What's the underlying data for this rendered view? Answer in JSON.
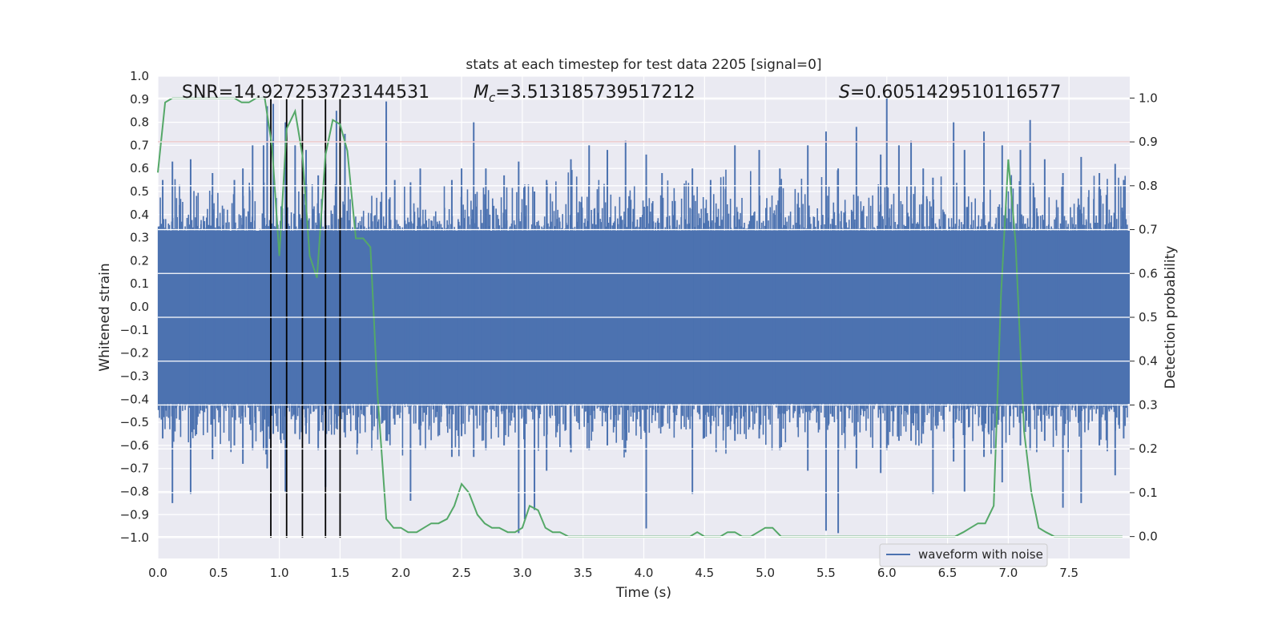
{
  "chart_data": {
    "type": "line",
    "title": "stats at each timestep for test data 2205 [signal=0]",
    "xlabel": "Time (s)",
    "ylabel": "Whitened strain",
    "y2label": "Detection probability",
    "xlim": [
      0.0,
      8.0
    ],
    "ylim": [
      -1.09,
      1.0
    ],
    "y2lim": [
      -0.05,
      1.05
    ],
    "xticks": [
      "0.0",
      "0.5",
      "1.0",
      "1.5",
      "2.0",
      "2.5",
      "3.0",
      "3.5",
      "4.0",
      "4.5",
      "5.0",
      "5.5",
      "6.0",
      "6.5",
      "7.0",
      "7.5"
    ],
    "yticks": [
      "1.0",
      "0.9",
      "0.8",
      "0.7",
      "0.6",
      "0.5",
      "0.4",
      "0.3",
      "0.2",
      "0.1",
      "0.0",
      "−0.1",
      "−0.2",
      "−0.3",
      "−0.4",
      "−0.5",
      "−0.6",
      "−0.7",
      "−0.8",
      "−0.9",
      "−1.0"
    ],
    "y2ticks": [
      "1.0",
      "0.9",
      "0.8",
      "0.7",
      "0.6",
      "0.5",
      "0.4",
      "0.3",
      "0.2",
      "0.1",
      "0.0"
    ],
    "grid": true,
    "annotations": {
      "snr": "SNR=14.927253723144531",
      "mc_symbol": "M",
      "mc_sub": "c",
      "mc_value": "=3.513185739517212",
      "s_symbol": "S",
      "s_value": "=0.6051429510116577"
    },
    "legend": {
      "position": "lower-right",
      "entries": [
        "waveform with noise"
      ]
    },
    "threshold": {
      "y2": 0.9,
      "color": "#c44e52"
    },
    "vertical_lines_x": [
      0.93,
      1.06,
      1.19,
      1.38,
      1.5
    ],
    "vertical_lines_range": [
      -1.0,
      0.9
    ],
    "series": [
      {
        "name": "waveform with noise",
        "axis": "left",
        "color": "#4c72b0",
        "band": [
          -0.42,
          0.33
        ],
        "peaks": [
          [
            0.04,
            0.55,
            -0.57
          ],
          [
            0.12,
            0.63,
            -0.85
          ],
          [
            0.27,
            0.64,
            -0.81
          ],
          [
            0.45,
            0.58,
            -0.66
          ],
          [
            0.63,
            0.55,
            -0.6
          ],
          [
            0.7,
            0.6,
            -0.68
          ],
          [
            0.78,
            0.7,
            -0.62
          ],
          [
            0.87,
            0.7,
            -0.62
          ],
          [
            0.9,
            0.87,
            -0.7
          ],
          [
            0.95,
            0.88,
            -0.55
          ],
          [
            1.05,
            0.8,
            -0.8
          ],
          [
            1.13,
            0.7,
            -0.55
          ],
          [
            1.22,
            0.68,
            -0.55
          ],
          [
            1.32,
            0.57,
            -0.62
          ],
          [
            1.38,
            0.62,
            -0.78
          ],
          [
            1.47,
            0.85,
            -0.5
          ],
          [
            1.54,
            0.75,
            -0.45
          ],
          [
            1.88,
            0.89,
            -0.58
          ],
          [
            1.95,
            0.55,
            -0.51
          ],
          [
            2.08,
            0.54,
            -0.84
          ],
          [
            2.16,
            0.6,
            -0.6
          ],
          [
            2.42,
            0.55,
            -0.65
          ],
          [
            2.5,
            0.6,
            -0.56
          ],
          [
            2.6,
            0.8,
            -0.65
          ],
          [
            2.7,
            0.6,
            -0.62
          ],
          [
            2.85,
            0.57,
            -0.6
          ],
          [
            2.97,
            0.63,
            -0.98
          ],
          [
            3.02,
            0.53,
            -0.92
          ],
          [
            3.1,
            0.5,
            -0.88
          ],
          [
            3.2,
            0.55,
            -0.71
          ],
          [
            3.4,
            0.64,
            -0.63
          ],
          [
            3.55,
            0.7,
            -0.62
          ],
          [
            3.7,
            0.68,
            -0.6
          ],
          [
            3.85,
            0.72,
            -0.63
          ],
          [
            4.02,
            0.66,
            -0.96
          ],
          [
            4.15,
            0.58,
            -0.52
          ],
          [
            4.4,
            0.6,
            -0.81
          ],
          [
            4.55,
            0.55,
            -0.55
          ],
          [
            4.75,
            0.7,
            -0.58
          ],
          [
            4.95,
            0.68,
            -0.57
          ],
          [
            5.12,
            0.6,
            -0.62
          ],
          [
            5.35,
            0.7,
            -0.71
          ],
          [
            5.5,
            0.76,
            -0.97
          ],
          [
            5.6,
            0.6,
            -0.98
          ],
          [
            5.75,
            0.78,
            -0.7
          ],
          [
            5.95,
            0.66,
            -0.72
          ],
          [
            6.0,
            0.91,
            -0.62
          ],
          [
            6.1,
            0.7,
            -0.58
          ],
          [
            6.2,
            0.72,
            -0.58
          ],
          [
            6.3,
            0.6,
            -0.55
          ],
          [
            6.38,
            0.56,
            -0.81
          ],
          [
            6.55,
            0.8,
            -0.67
          ],
          [
            6.64,
            0.68,
            -0.8
          ],
          [
            6.8,
            0.76,
            -0.65
          ],
          [
            6.95,
            0.7,
            -0.76
          ],
          [
            7.1,
            0.68,
            -0.6
          ],
          [
            7.18,
            0.81,
            -0.62
          ],
          [
            7.3,
            0.64,
            -0.58
          ],
          [
            7.45,
            0.58,
            -0.87
          ],
          [
            7.6,
            0.65,
            -0.85
          ],
          [
            7.75,
            0.58,
            -0.6
          ],
          [
            7.88,
            0.62,
            -0.73
          ],
          [
            7.95,
            0.55,
            -0.57
          ]
        ]
      },
      {
        "name": "",
        "axis": "right",
        "color": "#55a868",
        "x": [
          0.0,
          0.06,
          0.12,
          0.18,
          0.25,
          0.31,
          0.38,
          0.44,
          0.5,
          0.56,
          0.63,
          0.69,
          0.75,
          0.81,
          0.88,
          0.94,
          1.0,
          1.06,
          1.13,
          1.19,
          1.25,
          1.31,
          1.38,
          1.44,
          1.5,
          1.56,
          1.63,
          1.69,
          1.75,
          1.81,
          1.88,
          1.94,
          2.0,
          2.06,
          2.13,
          2.19,
          2.25,
          2.31,
          2.38,
          2.44,
          2.5,
          2.56,
          2.63,
          2.69,
          2.75,
          2.81,
          2.88,
          2.94,
          3.0,
          3.06,
          3.13,
          3.19,
          3.25,
          3.31,
          3.38,
          3.44,
          3.5,
          3.56,
          3.63,
          3.69,
          3.75,
          3.81,
          3.88,
          3.94,
          4.0,
          4.06,
          4.13,
          4.19,
          4.25,
          4.31,
          4.38,
          4.44,
          4.5,
          4.56,
          4.63,
          4.69,
          4.75,
          4.81,
          4.88,
          4.94,
          5.0,
          5.06,
          5.13,
          5.19,
          5.25,
          5.31,
          5.38,
          5.44,
          5.5,
          5.56,
          5.63,
          5.69,
          5.75,
          5.81,
          5.88,
          5.94,
          6.0,
          6.06,
          6.13,
          6.19,
          6.25,
          6.31,
          6.38,
          6.44,
          6.5,
          6.56,
          6.63,
          6.69,
          6.75,
          6.81,
          6.88,
          6.94,
          7.0,
          7.06,
          7.13,
          7.19,
          7.25,
          7.31,
          7.38,
          7.44,
          7.5,
          7.56,
          7.63,
          7.69,
          7.75,
          7.81,
          7.88,
          7.94
        ],
        "y": [
          0.83,
          0.99,
          1.0,
          1.0,
          1.0,
          1.0,
          1.0,
          1.0,
          1.0,
          1.0,
          1.0,
          0.99,
          0.99,
          1.0,
          1.0,
          0.89,
          0.64,
          0.93,
          0.97,
          0.87,
          0.64,
          0.59,
          0.87,
          0.95,
          0.94,
          0.88,
          0.68,
          0.68,
          0.66,
          0.32,
          0.04,
          0.02,
          0.02,
          0.01,
          0.01,
          0.02,
          0.03,
          0.03,
          0.04,
          0.07,
          0.12,
          0.1,
          0.05,
          0.03,
          0.02,
          0.02,
          0.01,
          0.01,
          0.02,
          0.07,
          0.06,
          0.02,
          0.01,
          0.01,
          0.0,
          0.0,
          0.0,
          0.0,
          0.0,
          0.0,
          0.0,
          0.0,
          0.0,
          0.0,
          0.0,
          0.0,
          0.0,
          0.0,
          0.0,
          0.0,
          0.0,
          0.01,
          0.0,
          0.0,
          0.0,
          0.01,
          0.01,
          0.0,
          0.0,
          0.01,
          0.02,
          0.02,
          0.0,
          0.0,
          0.0,
          0.0,
          0.0,
          0.0,
          0.0,
          0.0,
          0.0,
          0.0,
          0.0,
          0.0,
          0.0,
          0.0,
          0.0,
          0.0,
          0.0,
          0.0,
          0.0,
          0.0,
          0.0,
          0.0,
          0.0,
          0.0,
          0.01,
          0.02,
          0.03,
          0.03,
          0.07,
          0.55,
          0.86,
          0.67,
          0.24,
          0.1,
          0.02,
          0.01,
          0.0,
          0.0,
          0.0,
          0.0,
          0.0,
          0.0,
          0.0,
          0.0,
          0.0,
          0.0
        ]
      }
    ]
  }
}
